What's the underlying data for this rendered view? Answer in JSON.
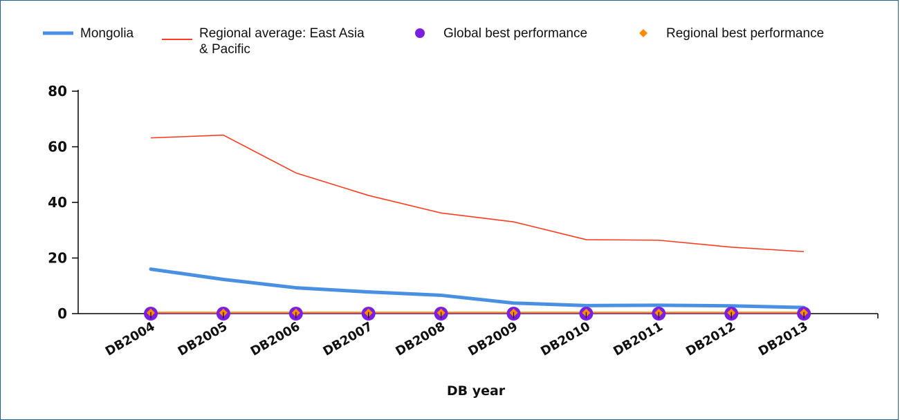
{
  "chart_data": {
    "type": "line",
    "title": "",
    "xlabel": "DB year",
    "ylabel": "",
    "ylim": [
      0,
      80
    ],
    "yticks": [
      0,
      20,
      40,
      60,
      80
    ],
    "categories": [
      "DB2004",
      "DB2005",
      "DB2006",
      "DB2007",
      "DB2008",
      "DB2009",
      "DB2010",
      "DB2011",
      "DB2012",
      "DB2013"
    ],
    "legend_position": "top",
    "series": [
      {
        "name": "Mongolia",
        "color": "#4a90e2",
        "style": "thick-line",
        "values": [
          16,
          12.3,
          9.3,
          7.8,
          6.6,
          3.8,
          2.9,
          3.0,
          2.8,
          2.2
        ]
      },
      {
        "name": "Regional average: East Asia & Pacific",
        "color": "#ff3b1f",
        "style": "thin-line",
        "values": [
          63.2,
          64.2,
          50.6,
          42.5,
          36.2,
          33.0,
          26.6,
          26.4,
          23.9,
          22.3
        ]
      },
      {
        "name": "Global best performance",
        "color": "#7b1fe0",
        "style": "markers",
        "values": [
          0,
          0,
          0,
          0,
          0,
          0,
          0,
          0,
          0,
          0
        ]
      },
      {
        "name": "Regional best performance",
        "color": "#ff8c00",
        "style": "diamond-line",
        "values": [
          0.3,
          0.3,
          0.3,
          0.3,
          0.3,
          0.3,
          0.3,
          0.3,
          0.3,
          0.3
        ]
      }
    ],
    "legend": [
      {
        "lines": [
          "Mongolia"
        ]
      },
      {
        "lines": [
          "Regional average: East Asia",
          "& Pacific"
        ]
      },
      {
        "lines": [
          "Global best performance"
        ]
      },
      {
        "lines": [
          "Regional best performance"
        ]
      }
    ]
  }
}
